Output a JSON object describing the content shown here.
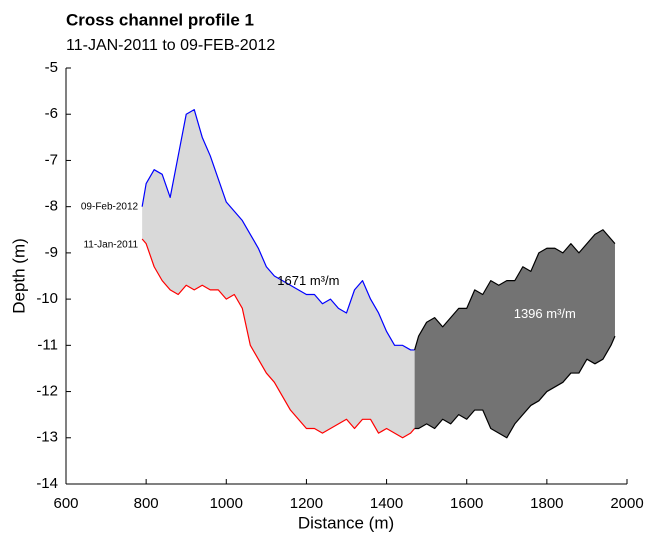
{
  "chart_data": {
    "type": "line",
    "title": "Cross channel profile 1",
    "subtitle": "11-JAN-2011 to 09-FEB-2012",
    "x_label": "Distance (m)",
    "y_label": "Depth (m)",
    "x": [
      790,
      800,
      820,
      840,
      860,
      880,
      900,
      920,
      940,
      960,
      980,
      1000,
      1020,
      1040,
      1060,
      1080,
      1100,
      1120,
      1140,
      1160,
      1180,
      1200,
      1220,
      1240,
      1260,
      1280,
      1300,
      1320,
      1340,
      1360,
      1380,
      1400,
      1420,
      1440,
      1460,
      1470,
      1480,
      1500,
      1520,
      1540,
      1560,
      1580,
      1600,
      1620,
      1640,
      1660,
      1680,
      1700,
      1720,
      1740,
      1760,
      1780,
      1800,
      1820,
      1840,
      1860,
      1880,
      1900,
      1920,
      1940,
      1960,
      1970
    ],
    "series": [
      {
        "name": "09-Feb-2012",
        "color": "#0000ff",
        "values": [
          -8.0,
          -7.5,
          -7.2,
          -7.3,
          -7.8,
          -6.9,
          -6.0,
          -5.9,
          -6.5,
          -6.9,
          -7.4,
          -7.9,
          -8.1,
          -8.3,
          -8.6,
          -8.9,
          -9.3,
          -9.5,
          -9.6,
          -9.7,
          -9.8,
          -9.9,
          -9.9,
          -10.1,
          -10.0,
          -10.2,
          -10.3,
          -9.8,
          -9.6,
          -10.0,
          -10.3,
          -10.7,
          -11.0,
          -11.0,
          -11.1,
          -11.1,
          -10.8,
          -10.5,
          -10.4,
          -10.6,
          -10.4,
          -10.2,
          -10.2,
          -9.8,
          -9.9,
          -9.6,
          -9.7,
          -9.6,
          -9.6,
          -9.3,
          -9.4,
          -9.0,
          -8.9,
          -8.9,
          -9.0,
          -8.8,
          -9.0,
          -8.8,
          -8.6,
          -8.5,
          -8.7,
          -8.8
        ]
      },
      {
        "name": "11-Jan-2011",
        "color": "#ff0000",
        "values": [
          -8.7,
          -8.8,
          -9.3,
          -9.6,
          -9.8,
          -9.9,
          -9.7,
          -9.8,
          -9.7,
          -9.8,
          -9.8,
          -10.0,
          -9.9,
          -10.2,
          -11.0,
          -11.3,
          -11.6,
          -11.8,
          -12.1,
          -12.4,
          -12.6,
          -12.8,
          -12.8,
          -12.9,
          -12.8,
          -12.7,
          -12.6,
          -12.8,
          -12.6,
          -12.6,
          -12.9,
          -12.8,
          -12.9,
          -13.0,
          -12.9,
          -12.8,
          -12.8,
          -12.7,
          -12.8,
          -12.6,
          -12.7,
          -12.5,
          -12.6,
          -12.4,
          -12.4,
          -12.8,
          -12.9,
          -13.0,
          -12.7,
          -12.5,
          -12.3,
          -12.2,
          -12.0,
          -11.9,
          -11.8,
          -11.6,
          -11.6,
          -11.3,
          -11.4,
          -11.3,
          -11.0,
          -10.8
        ]
      }
    ],
    "fills": [
      {
        "label": "1671 m³/m",
        "from": 790,
        "to": 1470,
        "color": "#d9d9d9",
        "label_color": "#000000"
      },
      {
        "label": "1396 m³/m",
        "from": 1470,
        "to": 1970,
        "color": "#737373",
        "line_color": "#000000",
        "label_color": "#ffffff"
      }
    ],
    "xlim": [
      600,
      2000
    ],
    "xticks": [
      600,
      800,
      1000,
      1200,
      1400,
      1600,
      1800,
      2000
    ],
    "ylim": [
      -14,
      -5
    ],
    "yticks": [
      -14,
      -13,
      -12,
      -11,
      -10,
      -9,
      -8,
      -7,
      -6,
      -5
    ]
  }
}
